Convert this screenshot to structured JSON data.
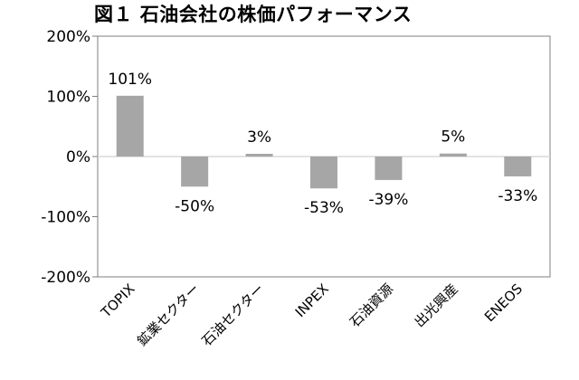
{
  "chart_data": {
    "type": "bar",
    "title": "図１ 石油会社の株価パフォーマンス",
    "categories": [
      "TOPIX",
      "鉱業セクター",
      "石油セクター",
      "INPEX",
      "石油資源",
      "出光興産",
      "ENEOS"
    ],
    "values": [
      101,
      -50,
      3,
      -53,
      -39,
      5,
      -33
    ],
    "value_labels": [
      "101%",
      "-50%",
      "3%",
      "-53%",
      "-39%",
      "5%",
      "-33%"
    ],
    "y_ticks": [
      200,
      100,
      0,
      -100,
      -200
    ],
    "y_tick_labels": [
      "200%",
      "100%",
      "0%",
      "-100%",
      "-200%"
    ],
    "ylim": [
      -200,
      200
    ],
    "unit": "%",
    "grid": false,
    "legend": "none",
    "colors": {
      "bar": "#a6a6a6",
      "zero_line": "#d9d9d9",
      "axis": "#7f7f7f"
    }
  }
}
